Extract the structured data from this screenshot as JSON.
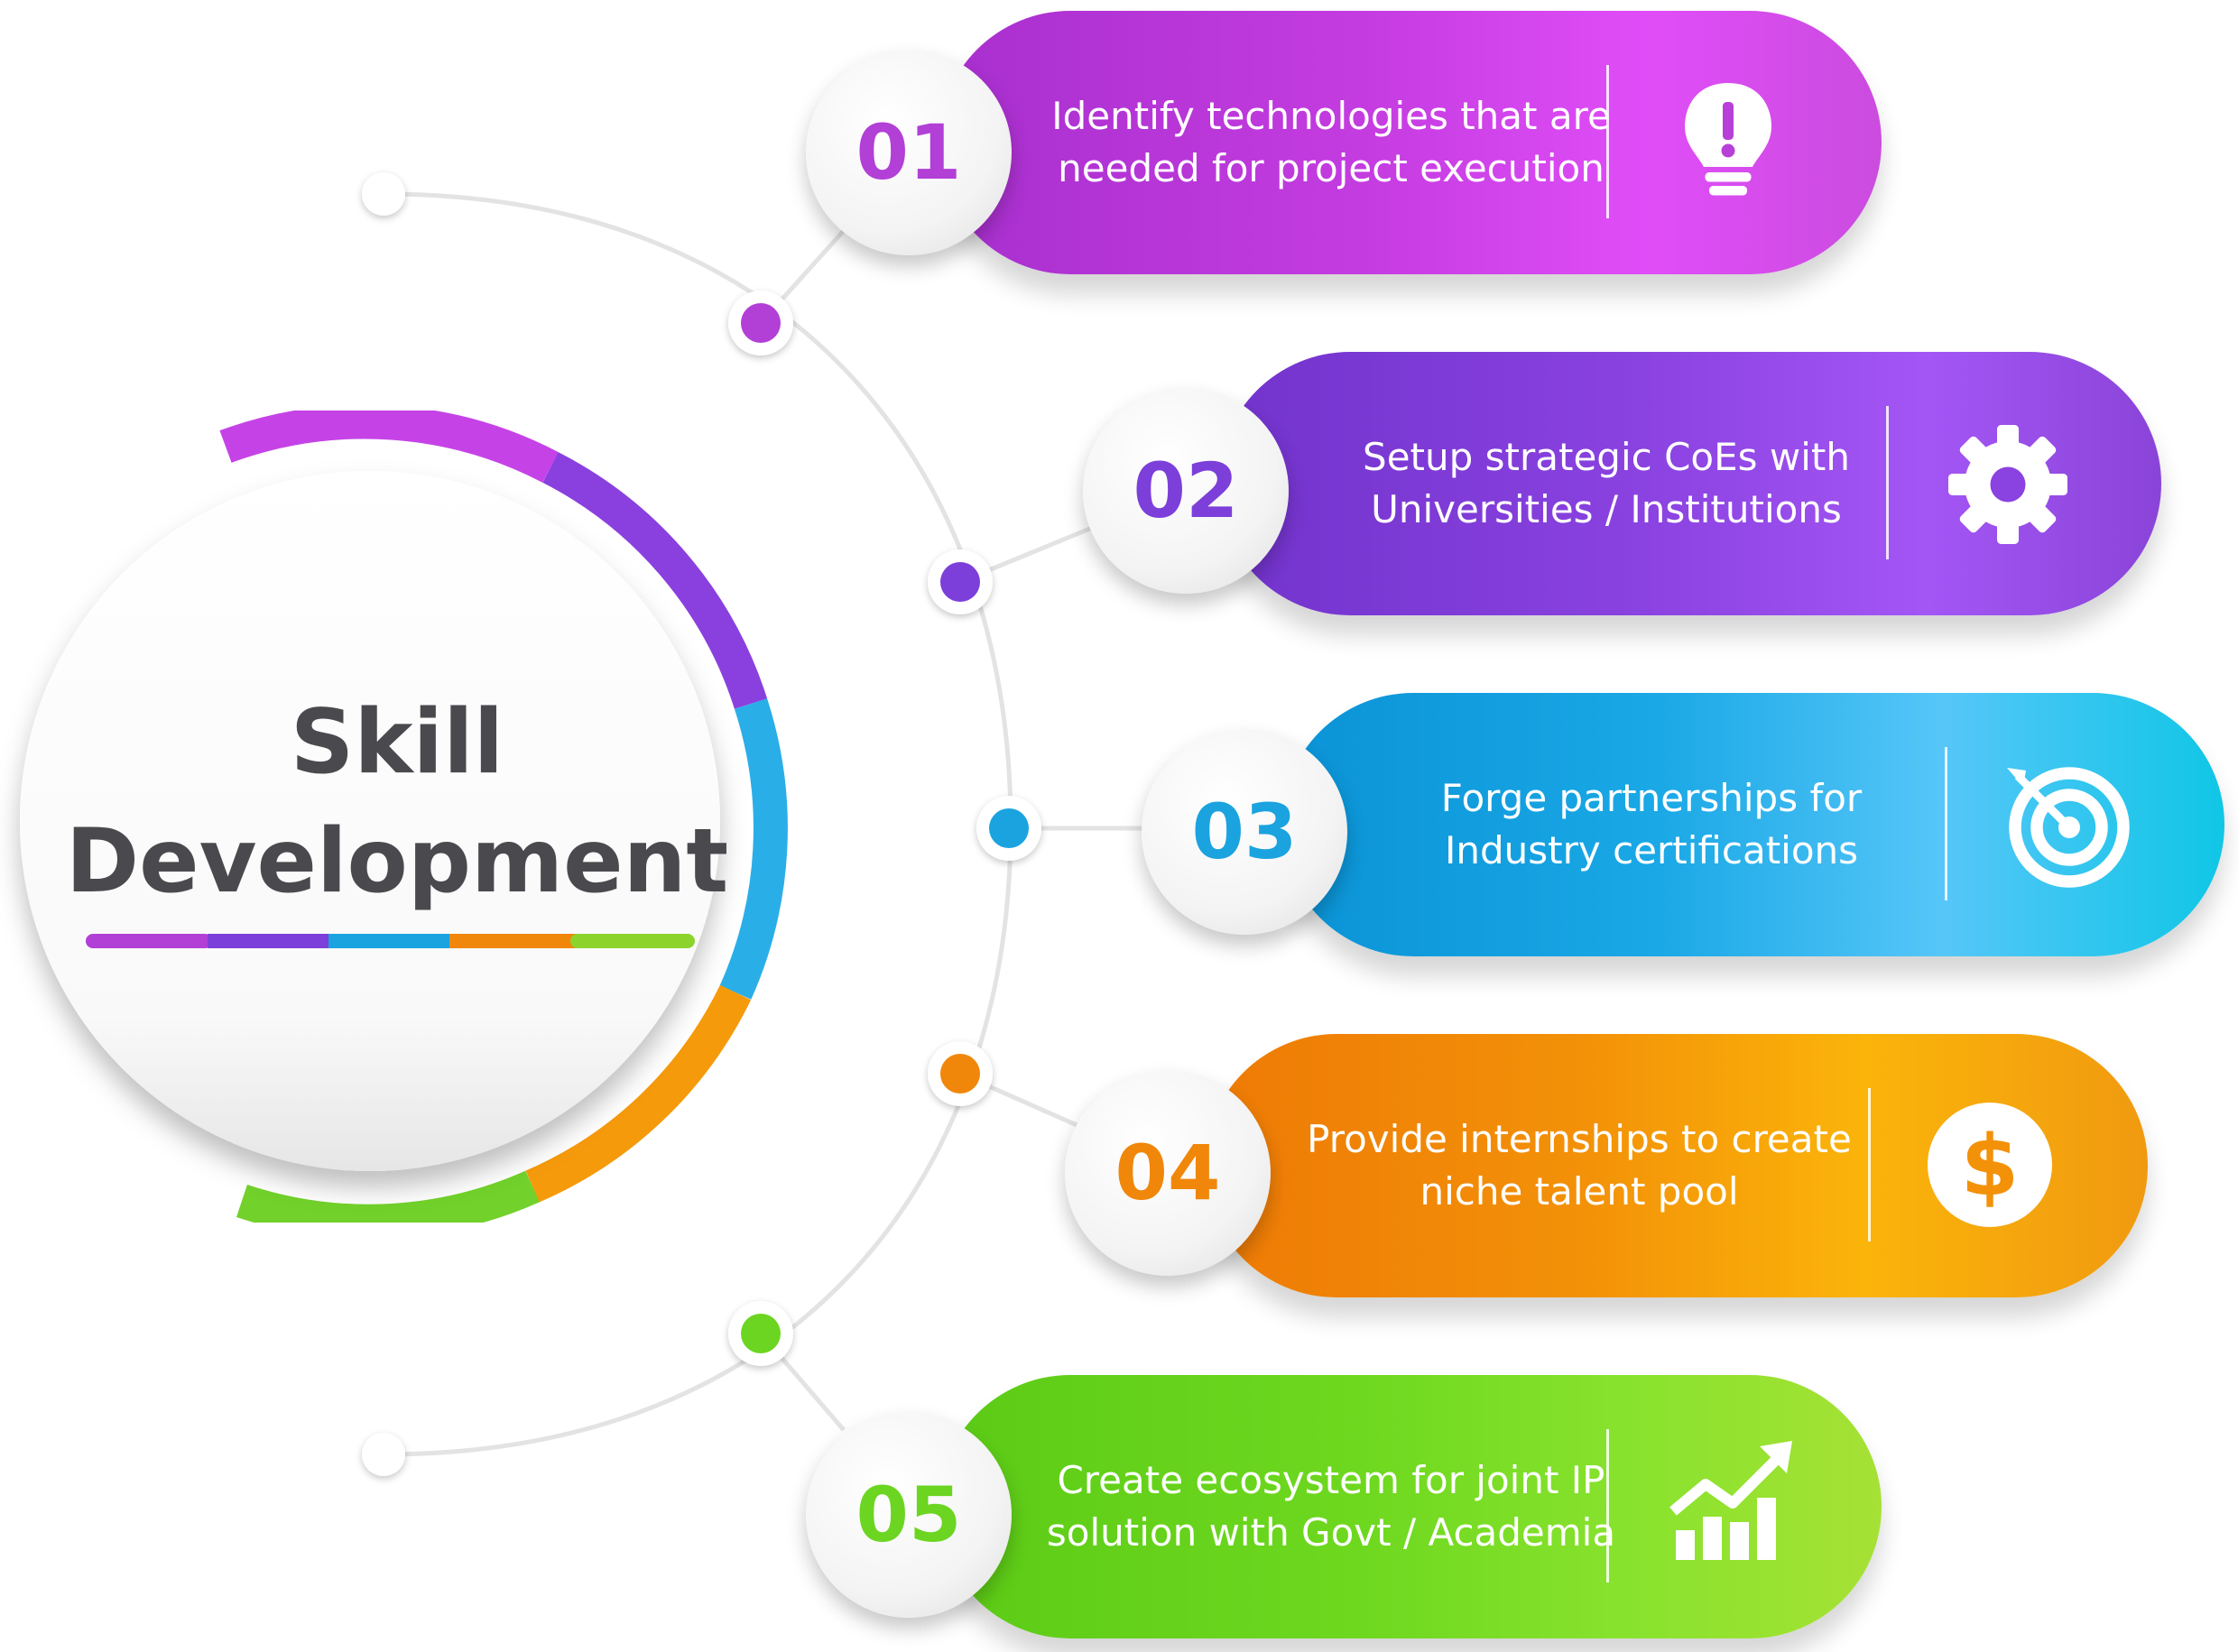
{
  "title": {
    "line1": "Skill",
    "line2": "Development"
  },
  "colors": {
    "c1": "#b23fd6",
    "c2": "#7c3fd9",
    "c3": "#1aa3df",
    "c4": "#f0870a",
    "c5": "#6cd521",
    "title_text": "#4a4a4e",
    "connector": "#e2e2e2"
  },
  "steps": [
    {
      "number": "01",
      "line1": "Identify technologies that are",
      "line2": "needed for project execution",
      "icon": "lightbulb-exclamation-icon",
      "color": "#b23fd6"
    },
    {
      "number": "02",
      "line1": "Setup strategic CoEs with",
      "line2": "Universities / Institutions",
      "icon": "gear-icon",
      "color": "#7c3fd9"
    },
    {
      "number": "03",
      "line1": "Forge partnerships for",
      "line2": "Industry certifications",
      "icon": "target-icon",
      "color": "#1aa3df"
    },
    {
      "number": "04",
      "line1": "Provide internships to create",
      "line2": "niche talent pool",
      "icon": "dollar-coin-icon",
      "color": "#f0870a"
    },
    {
      "number": "05",
      "line1": "Create ecosystem for joint IP",
      "line2": "solution with Govt / Academia",
      "icon": "growth-chart-icon",
      "color": "#6cd521"
    }
  ]
}
